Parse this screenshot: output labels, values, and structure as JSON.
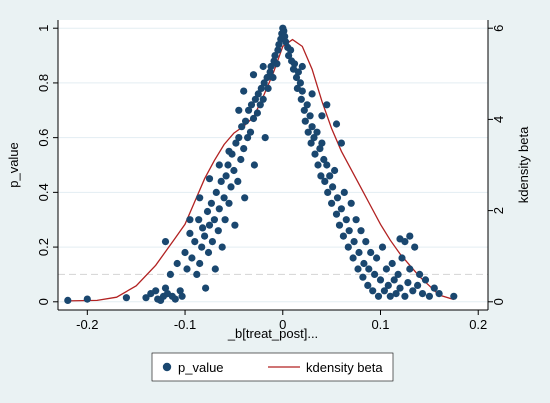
{
  "chart_data": {
    "type": "scatter",
    "xlabel": "_b[treat_post]...",
    "ylabel": "p_value",
    "y2label": "kdensity beta",
    "xlim": [
      -0.23,
      0.21
    ],
    "ylim": [
      -0.03,
      1.03
    ],
    "y2lim": [
      -0.18,
      6.18
    ],
    "x_ticks": [
      -0.2,
      -0.1,
      0,
      0.1,
      0.2
    ],
    "x_tick_labels": [
      "-0.2",
      "-0.1",
      "0",
      "0.1",
      "0.2"
    ],
    "y_ticks": [
      0,
      0.2,
      0.4,
      0.6,
      0.8,
      1
    ],
    "y_tick_labels": [
      "0",
      "0.2",
      "0.4",
      "0.6",
      "0.8",
      "1"
    ],
    "y2_ticks": [
      0,
      2,
      4,
      6
    ],
    "y2_tick_labels": [
      "0",
      "2",
      "4",
      "6"
    ],
    "reference_line_y": 0.1,
    "grid": true,
    "colors": {
      "scatter": "#1a476f",
      "density": "#b22222",
      "plot_bg": "#ffffff",
      "outer_bg": "#eaf2f3",
      "grid": "#e3edf2",
      "refline": "#d9d9d9"
    },
    "series": [
      {
        "name": "p_value",
        "kind": "scatter",
        "points": [
          [
            -0.22,
            0.005
          ],
          [
            -0.2,
            0.01
          ],
          [
            -0.16,
            0.015
          ],
          [
            -0.14,
            0.015
          ],
          [
            -0.135,
            0.03
          ],
          [
            -0.13,
            0.04
          ],
          [
            -0.128,
            0.01
          ],
          [
            -0.125,
            0.005
          ],
          [
            -0.122,
            0.02
          ],
          [
            -0.12,
            0.05
          ],
          [
            -0.118,
            0.03
          ],
          [
            -0.115,
            0.1
          ],
          [
            -0.113,
            0.02
          ],
          [
            -0.11,
            0.01
          ],
          [
            -0.108,
            0.14
          ],
          [
            -0.105,
            0.04
          ],
          [
            -0.103,
            0.02
          ],
          [
            -0.12,
            0.22
          ],
          [
            -0.1,
            0.18
          ],
          [
            -0.098,
            0.12
          ],
          [
            -0.095,
            0.25
          ],
          [
            -0.093,
            0.16
          ],
          [
            -0.09,
            0.22
          ],
          [
            -0.088,
            0.1
          ],
          [
            -0.086,
            0.3
          ],
          [
            -0.085,
            0.14
          ],
          [
            -0.083,
            0.2
          ],
          [
            -0.082,
            0.27
          ],
          [
            -0.08,
            0.24
          ],
          [
            -0.079,
            0.05
          ],
          [
            -0.077,
            0.33
          ],
          [
            -0.076,
            0.18
          ],
          [
            -0.075,
            0.28
          ],
          [
            -0.073,
            0.36
          ],
          [
            -0.072,
            0.22
          ],
          [
            -0.07,
            0.3
          ],
          [
            -0.069,
            0.12
          ],
          [
            -0.068,
            0.4
          ],
          [
            -0.066,
            0.26
          ],
          [
            -0.065,
            0.34
          ],
          [
            -0.063,
            0.44
          ],
          [
            -0.062,
            0.2
          ],
          [
            -0.06,
            0.38
          ],
          [
            -0.059,
            0.3
          ],
          [
            -0.058,
            0.46
          ],
          [
            -0.056,
            0.5
          ],
          [
            -0.055,
            0.36
          ],
          [
            -0.053,
            0.42
          ],
          [
            -0.052,
            0.54
          ],
          [
            -0.05,
            0.48
          ],
          [
            -0.049,
            0.28
          ],
          [
            -0.048,
            0.58
          ],
          [
            -0.046,
            0.44
          ],
          [
            -0.045,
            0.6
          ],
          [
            -0.043,
            0.52
          ],
          [
            -0.042,
            0.64
          ],
          [
            -0.04,
            0.56
          ],
          [
            -0.039,
            0.38
          ],
          [
            -0.038,
            0.66
          ],
          [
            -0.036,
            0.6
          ],
          [
            -0.035,
            0.7
          ],
          [
            -0.033,
            0.62
          ],
          [
            -0.032,
            0.72
          ],
          [
            -0.03,
            0.67
          ],
          [
            -0.029,
            0.5
          ],
          [
            -0.028,
            0.74
          ],
          [
            -0.026,
            0.69
          ],
          [
            -0.025,
            0.76
          ],
          [
            -0.023,
            0.72
          ],
          [
            -0.022,
            0.78
          ],
          [
            -0.02,
            0.74
          ],
          [
            -0.019,
            0.8
          ],
          [
            -0.018,
            0.6
          ],
          [
            -0.016,
            0.82
          ],
          [
            -0.015,
            0.78
          ],
          [
            -0.013,
            0.84
          ],
          [
            -0.012,
            0.86
          ],
          [
            -0.01,
            0.82
          ],
          [
            -0.009,
            0.88
          ],
          [
            -0.008,
            0.9
          ],
          [
            -0.006,
            0.87
          ],
          [
            -0.005,
            0.92
          ],
          [
            -0.004,
            0.94
          ],
          [
            -0.002,
            0.96
          ],
          [
            -0.001,
            0.98
          ],
          [
            0.0,
            1.0
          ],
          [
            0.001,
            0.99
          ],
          [
            0.002,
            0.97
          ],
          [
            0.003,
            0.95
          ],
          [
            0.005,
            0.93
          ],
          [
            0.006,
            0.9
          ],
          [
            0.008,
            0.92
          ],
          [
            0.009,
            0.88
          ],
          [
            0.011,
            0.85
          ],
          [
            0.012,
            0.87
          ],
          [
            0.014,
            0.82
          ],
          [
            0.015,
            0.78
          ],
          [
            0.016,
            0.84
          ],
          [
            0.018,
            0.8
          ],
          [
            0.019,
            0.74
          ],
          [
            0.02,
            0.77
          ],
          [
            0.022,
            0.7
          ],
          [
            0.023,
            0.66
          ],
          [
            0.025,
            0.72
          ],
          [
            0.026,
            0.62
          ],
          [
            0.028,
            0.68
          ],
          [
            0.029,
            0.58
          ],
          [
            0.03,
            0.64
          ],
          [
            0.032,
            0.6
          ],
          [
            0.033,
            0.54
          ],
          [
            0.035,
            0.62
          ],
          [
            0.036,
            0.5
          ],
          [
            0.038,
            0.56
          ],
          [
            0.039,
            0.46
          ],
          [
            0.04,
            0.58
          ],
          [
            0.042,
            0.52
          ],
          [
            0.043,
            0.44
          ],
          [
            0.045,
            0.5
          ],
          [
            0.046,
            0.4
          ],
          [
            0.048,
            0.46
          ],
          [
            0.05,
            0.36
          ],
          [
            0.051,
            0.42
          ],
          [
            0.053,
            0.48
          ],
          [
            0.055,
            0.32
          ],
          [
            0.056,
            0.38
          ],
          [
            0.058,
            0.28
          ],
          [
            0.06,
            0.34
          ],
          [
            0.062,
            0.24
          ],
          [
            0.063,
            0.4
          ],
          [
            0.065,
            0.3
          ],
          [
            0.067,
            0.2
          ],
          [
            0.068,
            0.26
          ],
          [
            0.07,
            0.36
          ],
          [
            0.072,
            0.16
          ],
          [
            0.073,
            0.22
          ],
          [
            0.075,
            0.3
          ],
          [
            0.077,
            0.12
          ],
          [
            0.078,
            0.18
          ],
          [
            0.08,
            0.26
          ],
          [
            0.082,
            0.09
          ],
          [
            0.083,
            0.14
          ],
          [
            0.085,
            0.22
          ],
          [
            0.087,
            0.06
          ],
          [
            0.088,
            0.12
          ],
          [
            0.09,
            0.18
          ],
          [
            0.092,
            0.04
          ],
          [
            0.094,
            0.1
          ],
          [
            0.096,
            0.16
          ],
          [
            0.098,
            0.02
          ],
          [
            0.1,
            0.08
          ],
          [
            0.102,
            0.2
          ],
          [
            0.104,
            0.04
          ],
          [
            0.106,
            0.12
          ],
          [
            0.108,
            0.06
          ],
          [
            0.11,
            0.02
          ],
          [
            0.112,
            0.14
          ],
          [
            0.114,
            0.08
          ],
          [
            0.116,
            0.03
          ],
          [
            0.118,
            0.1
          ],
          [
            0.12,
            0.05
          ],
          [
            0.122,
            0.16
          ],
          [
            0.125,
            0.02
          ],
          [
            0.128,
            0.07
          ],
          [
            0.13,
            0.12
          ],
          [
            0.133,
            0.04
          ],
          [
            0.135,
            0.2
          ],
          [
            0.138,
            0.06
          ],
          [
            0.14,
            0.1
          ],
          [
            0.143,
            0.03
          ],
          [
            0.146,
            0.08
          ],
          [
            0.15,
            0.02
          ],
          [
            0.155,
            0.05
          ],
          [
            0.16,
            0.03
          ],
          [
            0.175,
            0.02
          ],
          [
            0.12,
            0.23
          ],
          [
            0.13,
            0.24
          ],
          [
            0.125,
            0.22
          ],
          [
            0.045,
            0.72
          ],
          [
            0.055,
            0.65
          ],
          [
            0.06,
            0.58
          ],
          [
            -0.045,
            0.7
          ],
          [
            -0.055,
            0.55
          ],
          [
            -0.065,
            0.5
          ],
          [
            -0.075,
            0.45
          ],
          [
            -0.085,
            0.38
          ],
          [
            -0.095,
            0.3
          ],
          [
            -0.04,
            0.77
          ],
          [
            -0.03,
            0.83
          ],
          [
            -0.02,
            0.86
          ],
          [
            0.02,
            0.86
          ],
          [
            0.03,
            0.76
          ],
          [
            0.04,
            0.68
          ]
        ]
      },
      {
        "name": "kdensity beta",
        "kind": "line",
        "axis": "y2",
        "points": [
          [
            -0.22,
            0.02
          ],
          [
            -0.19,
            0.03
          ],
          [
            -0.17,
            0.1
          ],
          [
            -0.15,
            0.35
          ],
          [
            -0.13,
            0.8
          ],
          [
            -0.11,
            1.4
          ],
          [
            -0.1,
            1.7
          ],
          [
            -0.09,
            2.2
          ],
          [
            -0.08,
            2.7
          ],
          [
            -0.07,
            3.1
          ],
          [
            -0.06,
            3.45
          ],
          [
            -0.05,
            3.7
          ],
          [
            -0.04,
            3.85
          ],
          [
            -0.03,
            4.05
          ],
          [
            -0.02,
            4.5
          ],
          [
            -0.01,
            5.0
          ],
          [
            0.0,
            5.6
          ],
          [
            0.01,
            5.75
          ],
          [
            0.02,
            5.6
          ],
          [
            0.03,
            5.1
          ],
          [
            0.04,
            4.4
          ],
          [
            0.05,
            3.8
          ],
          [
            0.06,
            3.3
          ],
          [
            0.07,
            2.9
          ],
          [
            0.08,
            2.5
          ],
          [
            0.09,
            2.1
          ],
          [
            0.1,
            1.7
          ],
          [
            0.11,
            1.35
          ],
          [
            0.12,
            1.05
          ],
          [
            0.13,
            0.8
          ],
          [
            0.14,
            0.55
          ],
          [
            0.15,
            0.35
          ],
          [
            0.16,
            0.15
          ],
          [
            0.175,
            0.05
          ]
        ]
      }
    ],
    "legend": {
      "position": "bottom",
      "entries": [
        "p_value",
        "kdensity beta"
      ]
    }
  }
}
